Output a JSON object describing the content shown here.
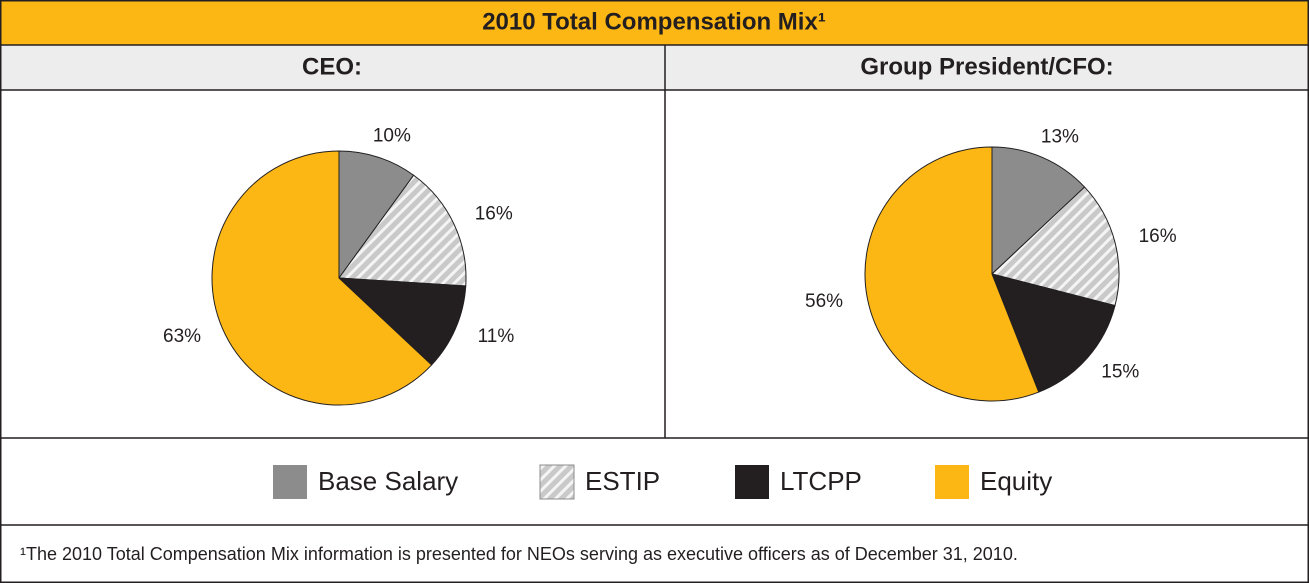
{
  "title": "2010 Total Compensation Mix¹",
  "legend": {
    "names": [
      "Base Salary",
      "ESTIP",
      "LTCPP",
      "Equity"
    ],
    "colors": [
      "#8c8c8c",
      "#c9c9c9",
      "#231f20",
      "#fdb714"
    ],
    "hatched": [
      false,
      true,
      false,
      false
    ]
  },
  "chart_data": [
    {
      "type": "pie",
      "title": "CEO:",
      "values": [
        10,
        16,
        11,
        63
      ],
      "value_labels": [
        "10%",
        "16%",
        "11%",
        "63%"
      ]
    },
    {
      "type": "pie",
      "title": "Group President/CFO:",
      "values": [
        13,
        16,
        15,
        56
      ],
      "value_labels": [
        "13%",
        "16%",
        "15%",
        "56%"
      ]
    }
  ],
  "footnote": "¹The 2010 Total Compensation Mix information is presented for NEOs serving as executive officers as of December 31, 2010."
}
